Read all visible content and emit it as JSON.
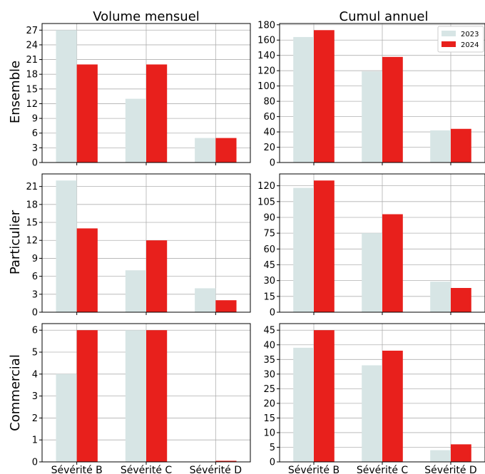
{
  "colors": {
    "s2023": "#d7e5e5",
    "s2024": "#e8201c"
  },
  "col_titles": [
    "Volume mensuel",
    "Cumul annuel"
  ],
  "row_labels": [
    "Ensemble",
    "Particulier",
    "Commercial"
  ],
  "legend": {
    "placement": "top-right",
    "entries": [
      "2023",
      "2024"
    ]
  },
  "chart_data": [
    {
      "type": "bar",
      "title": "Volume mensuel",
      "row": "Ensemble",
      "categories": [
        "Sévérité B",
        "Sévérité C",
        "Sévérité D"
      ],
      "series": [
        {
          "name": "2023",
          "values": [
            27,
            13,
            5
          ]
        },
        {
          "name": "2024",
          "values": [
            20,
            20,
            5
          ]
        }
      ],
      "ylim": [
        0,
        28.35
      ],
      "yticks": [
        0,
        3,
        6,
        9,
        12,
        15,
        18,
        21,
        24,
        27
      ],
      "grid": true
    },
    {
      "type": "bar",
      "title": "Cumul annuel",
      "row": "Ensemble",
      "categories": [
        "Sévérité B",
        "Sévérité C",
        "Sévérité D"
      ],
      "series": [
        {
          "name": "2023",
          "values": [
            164,
            119,
            42
          ]
        },
        {
          "name": "2024",
          "values": [
            173,
            138,
            44
          ]
        }
      ],
      "ylim": [
        0,
        181.65
      ],
      "yticks": [
        0,
        20,
        40,
        60,
        80,
        100,
        120,
        140,
        160,
        180
      ],
      "grid": true
    },
    {
      "type": "bar",
      "title": "Volume mensuel",
      "row": "Particulier",
      "categories": [
        "Sévérité B",
        "Sévérité C",
        "Sévérité D"
      ],
      "series": [
        {
          "name": "2023",
          "values": [
            22,
            7,
            4
          ]
        },
        {
          "name": "2024",
          "values": [
            14,
            12,
            2
          ]
        }
      ],
      "ylim": [
        0,
        23.1
      ],
      "yticks": [
        0,
        3,
        6,
        9,
        12,
        15,
        18,
        21
      ],
      "grid": true
    },
    {
      "type": "bar",
      "title": "Cumul annuel",
      "row": "Particulier",
      "categories": [
        "Sévérité B",
        "Sévérité C",
        "Sévérité D"
      ],
      "series": [
        {
          "name": "2023",
          "values": [
            118,
            75,
            29
          ]
        },
        {
          "name": "2024",
          "values": [
            125,
            93,
            23
          ]
        }
      ],
      "ylim": [
        0,
        131.25
      ],
      "yticks": [
        0,
        15,
        30,
        45,
        60,
        75,
        90,
        105,
        120
      ],
      "grid": true
    },
    {
      "type": "bar",
      "title": "Volume mensuel",
      "row": "Commercial",
      "categories": [
        "Sévérité B",
        "Sévérité C",
        "Sévérité D"
      ],
      "series": [
        {
          "name": "2023",
          "values": [
            4,
            6,
            0
          ]
        },
        {
          "name": "2024",
          "values": [
            6,
            6,
            0.05
          ]
        }
      ],
      "ylim": [
        0,
        6.3
      ],
      "yticks": [
        0,
        1,
        2,
        3,
        4,
        5,
        6
      ],
      "grid": true
    },
    {
      "type": "bar",
      "title": "Cumul annuel",
      "row": "Commercial",
      "categories": [
        "Sévérité B",
        "Sévérité C",
        "Sévérité D"
      ],
      "series": [
        {
          "name": "2023",
          "values": [
            39,
            33,
            4
          ]
        },
        {
          "name": "2024",
          "values": [
            45,
            38,
            6
          ]
        }
      ],
      "ylim": [
        0,
        47.25
      ],
      "yticks": [
        0,
        5,
        10,
        15,
        20,
        25,
        30,
        35,
        40,
        45
      ],
      "grid": true
    }
  ]
}
